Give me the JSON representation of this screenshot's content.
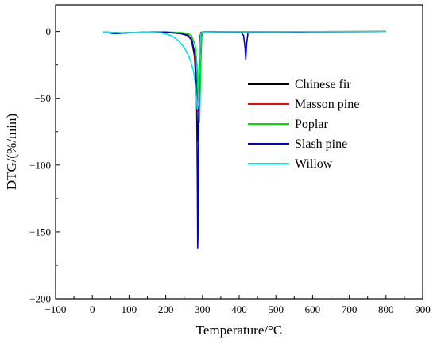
{
  "chart_data": {
    "type": "line",
    "xlabel": "Temperature/°C",
    "ylabel": "DTG/(%/min)",
    "xlim": [
      -100,
      900
    ],
    "ylim": [
      -200,
      20
    ],
    "xticks": [
      -100,
      0,
      100,
      200,
      300,
      400,
      500,
      600,
      700,
      800,
      900
    ],
    "yticks": [
      0,
      -50,
      -100,
      -150,
      -200
    ],
    "legend_position": "right",
    "series": [
      {
        "name": "Chinese fir",
        "color": "#000000",
        "x": [
          30,
          80,
          150,
          200,
          240,
          260,
          270,
          278,
          283,
          287,
          289,
          291,
          293,
          296,
          300,
          350,
          450,
          600,
          800
        ],
        "y": [
          -0.5,
          -1,
          -0.5,
          -0.5,
          -1.5,
          -3,
          -6,
          -18,
          -40,
          -82,
          -80,
          -35,
          -5,
          -0.8,
          -0.3,
          -0.2,
          -0.2,
          -0.1,
          0
        ]
      },
      {
        "name": "Masson pine",
        "color": "#ff0000",
        "x": [
          30,
          80,
          150,
          200,
          240,
          260,
          270,
          278,
          283,
          287,
          289,
          291,
          293,
          296,
          300,
          350,
          450,
          600,
          800
        ],
        "y": [
          -0.5,
          -1,
          -0.5,
          -0.5,
          -1.2,
          -2.5,
          -5,
          -15,
          -35,
          -60,
          -58,
          -30,
          -4,
          -0.8,
          -0.3,
          -0.2,
          -0.2,
          -0.1,
          0
        ]
      },
      {
        "name": "Poplar",
        "color": "#00dd00",
        "x": [
          30,
          80,
          150,
          200,
          240,
          260,
          270,
          280,
          285,
          289,
          292,
          295,
          298,
          302,
          350,
          450,
          600,
          800
        ],
        "y": [
          -0.5,
          -1,
          -0.5,
          -0.3,
          -0.8,
          -1.5,
          -3,
          -10,
          -25,
          -50,
          -68,
          -30,
          -4,
          -0.5,
          -0.2,
          -0.2,
          -0.1,
          0
        ]
      },
      {
        "name": "Slash pine",
        "color": "#0000cc",
        "x": [
          30,
          60,
          100,
          150,
          200,
          240,
          260,
          272,
          280,
          284,
          286,
          287,
          288,
          289,
          291,
          294,
          298,
          305,
          350,
          405,
          412,
          416,
          418,
          420,
          424,
          430,
          500,
          560,
          565,
          570,
          600,
          800
        ],
        "y": [
          -0.5,
          -1.5,
          -1,
          -0.5,
          -0.5,
          -1.5,
          -3,
          -7,
          -18,
          -45,
          -110,
          -162,
          -150,
          -90,
          -30,
          -6,
          -1,
          -0.3,
          -0.2,
          -0.5,
          -3,
          -12,
          -21,
          -10,
          -1,
          -0.3,
          -0.2,
          -0.3,
          -1,
          -0.3,
          -0.2,
          0
        ]
      },
      {
        "name": "Willow",
        "color": "#00e5e5",
        "x": [
          30,
          80,
          150,
          190,
          215,
          235,
          250,
          262,
          270,
          276,
          280,
          283,
          286,
          288,
          290,
          293,
          296,
          300,
          350,
          450,
          600,
          800
        ],
        "y": [
          -0.5,
          -1,
          -0.5,
          -1,
          -3,
          -7,
          -12,
          -18,
          -24,
          -30,
          -38,
          -48,
          -58,
          -55,
          -35,
          -10,
          -2,
          -0.4,
          -0.2,
          -0.2,
          -0.1,
          0
        ]
      }
    ]
  }
}
